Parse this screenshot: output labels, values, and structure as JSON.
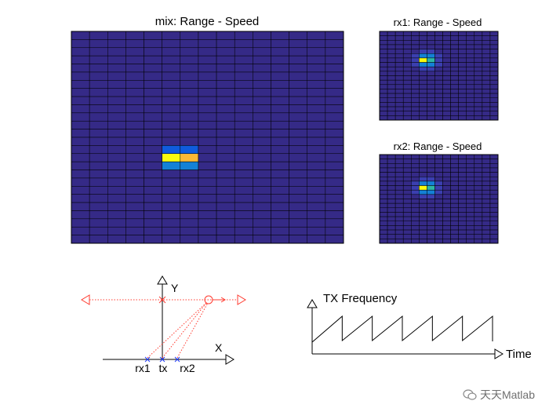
{
  "chart_data": [
    {
      "type": "heatmap",
      "title": "mix: Range - Speed",
      "rows": 26,
      "cols": 15,
      "background_color": "#352a87",
      "hotspot": {
        "row": 15,
        "col": 5,
        "colors": [
          "#f9fb0e",
          "#fbb935"
        ]
      },
      "colormap": [
        "#352a87",
        "#0f5cdd",
        "#1481d6",
        "#06a4ca",
        "#2eb7a4",
        "#87bf77",
        "#d1bb59",
        "#fec832",
        "#f9fb0e"
      ]
    },
    {
      "type": "heatmap",
      "title": "rx1: Range - Speed",
      "rows": 20,
      "cols": 15,
      "background_color": "#352a87",
      "hotspot": {
        "row": 6,
        "col": 5,
        "colors": [
          "#f9fb0e",
          "#2eb7a4"
        ]
      }
    },
    {
      "type": "heatmap",
      "title": "rx2: Range - Speed",
      "rows": 20,
      "cols": 15,
      "background_color": "#352a87",
      "hotspot": {
        "row": 7,
        "col": 5,
        "colors": [
          "#f9fb0e",
          "#2eb7a4"
        ]
      }
    }
  ],
  "diagram": {
    "x_axis_label": "X",
    "y_axis_label": "Y",
    "antennas": [
      "rx1",
      "tx",
      "rx2"
    ],
    "colors": {
      "target": "#ff3b30",
      "antenna": "#1f3bff",
      "axis": "#000000"
    }
  },
  "tx_frequency": {
    "type": "line",
    "title": "TX Frequency",
    "xlabel": "Time",
    "sawtooth_periods": 6
  },
  "watermark": {
    "text": "天天Matlab",
    "icon": "wechat-icon"
  }
}
